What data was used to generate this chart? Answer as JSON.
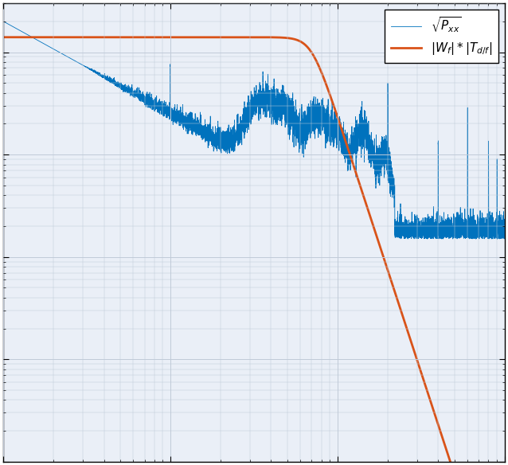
{
  "title": "",
  "xlabel": "",
  "ylabel": "",
  "xlim": [
    0.1,
    100
  ],
  "ylim": [
    1e-09,
    3e-05
  ],
  "line1_color": "#0072BD",
  "line2_color": "#D95319",
  "line1_label": "$\\sqrt{P_{xx}}$",
  "line2_label": "$|W_f| * |T_{d/f}|$",
  "grid_color": "#c0cad8",
  "bg_color": "#eaeff7",
  "figsize": [
    6.38,
    5.84
  ],
  "dpi": 100
}
